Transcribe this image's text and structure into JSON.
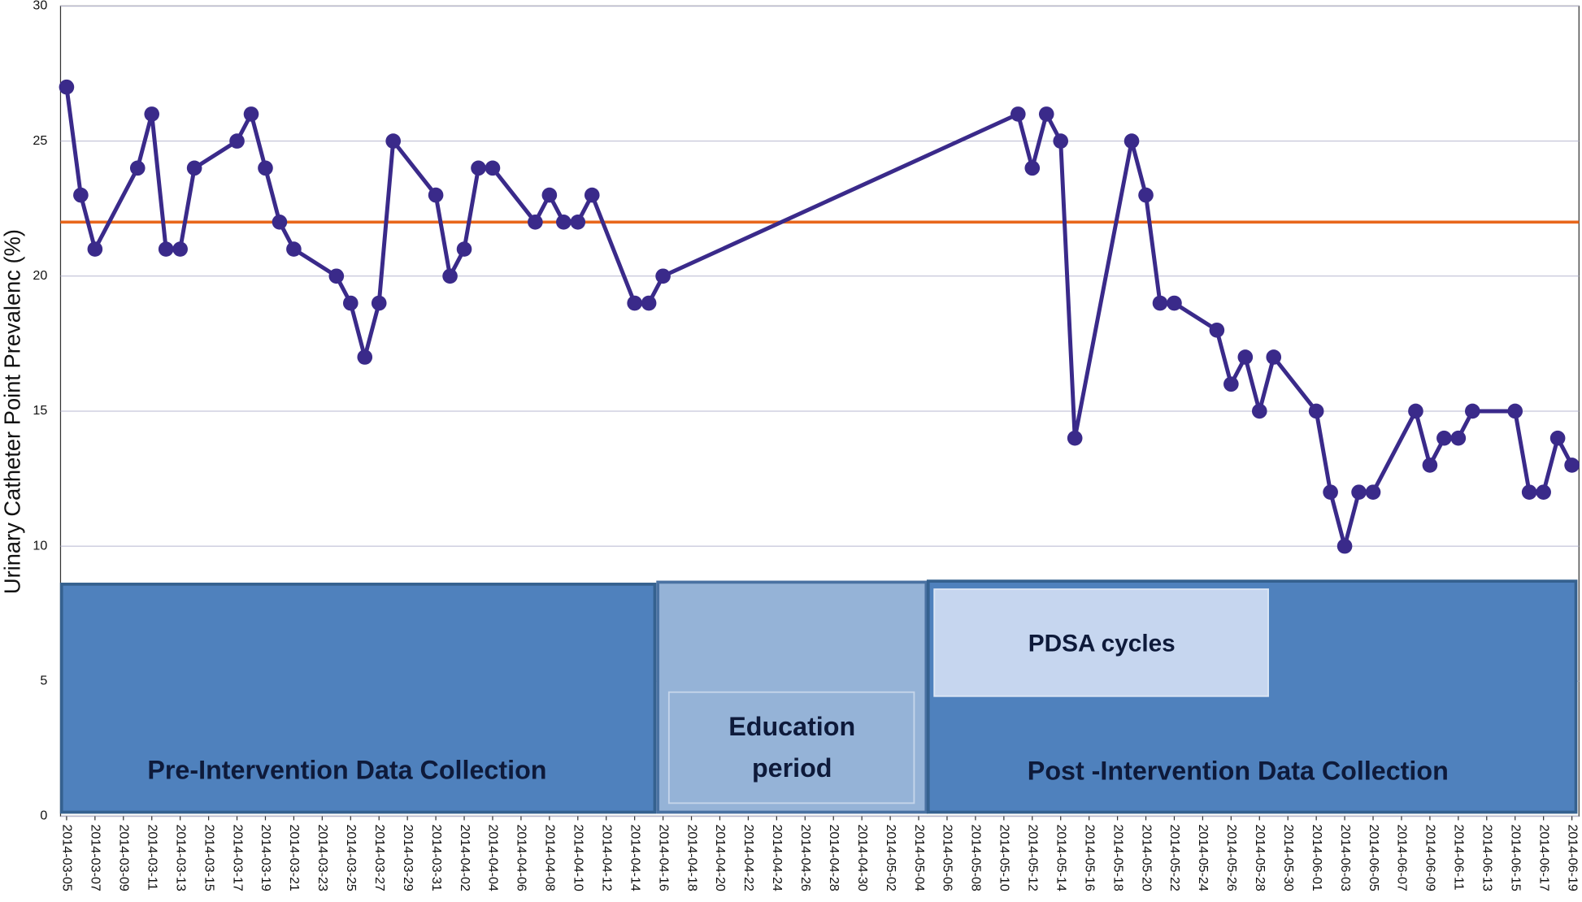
{
  "chart_data": {
    "type": "line",
    "y_label": "Urinary Catheter Point Prevalenc (%)",
    "x": [
      "2014-03-05",
      "2014-03-06",
      "2014-03-07",
      "2014-03-10",
      "2014-03-11",
      "2014-03-12",
      "2014-03-13",
      "2014-03-14",
      "2014-03-17",
      "2014-03-18",
      "2014-03-19",
      "2014-03-20",
      "2014-03-21",
      "2014-03-24",
      "2014-03-25",
      "2014-03-26",
      "2014-03-27",
      "2014-03-28",
      "2014-03-31",
      "2014-04-01",
      "2014-04-02",
      "2014-04-03",
      "2014-04-04",
      "2014-04-07",
      "2014-04-08",
      "2014-04-09",
      "2014-04-10",
      "2014-04-11",
      "2014-04-14",
      "2014-04-15",
      "2014-04-16",
      "2014-05-11",
      "2014-05-12",
      "2014-05-13",
      "2014-05-14",
      "2014-05-15",
      "2014-05-19",
      "2014-05-20",
      "2014-05-21",
      "2014-05-22",
      "2014-05-25",
      "2014-05-26",
      "2014-05-27",
      "2014-05-28",
      "2014-05-29",
      "2014-06-01",
      "2014-06-02",
      "2014-06-03",
      "2014-06-04",
      "2014-06-05",
      "2014-06-08",
      "2014-06-09",
      "2014-06-10",
      "2014-06-11",
      "2014-06-12",
      "2014-06-15",
      "2014-06-16",
      "2014-06-17",
      "2014-06-18",
      "2014-06-19"
    ],
    "series": [
      {
        "color": "#3a2a8a",
        "values": [
          27,
          23,
          21,
          24,
          26,
          21,
          21,
          24,
          25,
          26,
          24,
          22,
          21,
          20,
          19,
          17,
          19,
          25,
          23,
          20,
          21,
          24,
          24,
          22,
          23,
          22,
          22,
          23,
          19,
          19,
          20,
          26,
          24,
          26,
          25,
          14,
          25,
          23,
          19,
          19,
          18,
          16,
          17,
          15,
          17,
          15,
          12,
          10,
          12,
          12,
          15,
          13,
          14,
          14,
          15,
          15,
          12,
          12,
          14,
          13
        ]
      }
    ],
    "reference_line": {
      "value": 22,
      "color": "#e8671c"
    },
    "xlim": [
      "2014-03-05",
      "2014-06-19"
    ],
    "xticks": [
      "2014-03-05",
      "2014-03-07",
      "2014-03-09",
      "2014-03-11",
      "2014-03-13",
      "2014-03-15",
      "2014-03-17",
      "2014-03-19",
      "2014-03-21",
      "2014-03-23",
      "2014-03-25",
      "2014-03-27",
      "2014-03-29",
      "2014-03-31",
      "2014-04-02",
      "2014-04-04",
      "2014-04-06",
      "2014-04-08",
      "2014-04-10",
      "2014-04-12",
      "2014-04-14",
      "2014-04-16",
      "2014-04-18",
      "2014-04-20",
      "2014-04-22",
      "2014-04-24",
      "2014-04-26",
      "2014-04-28",
      "2014-04-30",
      "2014-05-02",
      "2014-05-04",
      "2014-05-06",
      "2014-05-08",
      "2014-05-10",
      "2014-05-12",
      "2014-05-14",
      "2014-05-16",
      "2014-05-18",
      "2014-05-20",
      "2014-05-22",
      "2014-05-24",
      "2014-05-26",
      "2014-05-28",
      "2014-05-30",
      "2014-06-01",
      "2014-06-03",
      "2014-06-05",
      "2014-06-07",
      "2014-06-09",
      "2014-06-11",
      "2014-06-13",
      "2014-06-15",
      "2014-06-17",
      "2014-06-19"
    ],
    "ylim": [
      0,
      30
    ],
    "yticks": [
      0,
      5,
      10,
      15,
      20,
      25,
      30
    ],
    "grid": true,
    "annotations": {
      "pre": "Pre-Intervention Data Collection",
      "education": [
        "Education",
        "period"
      ],
      "pdsa": "PDSA cycles",
      "post": "Post -Intervention Data Collection"
    }
  }
}
